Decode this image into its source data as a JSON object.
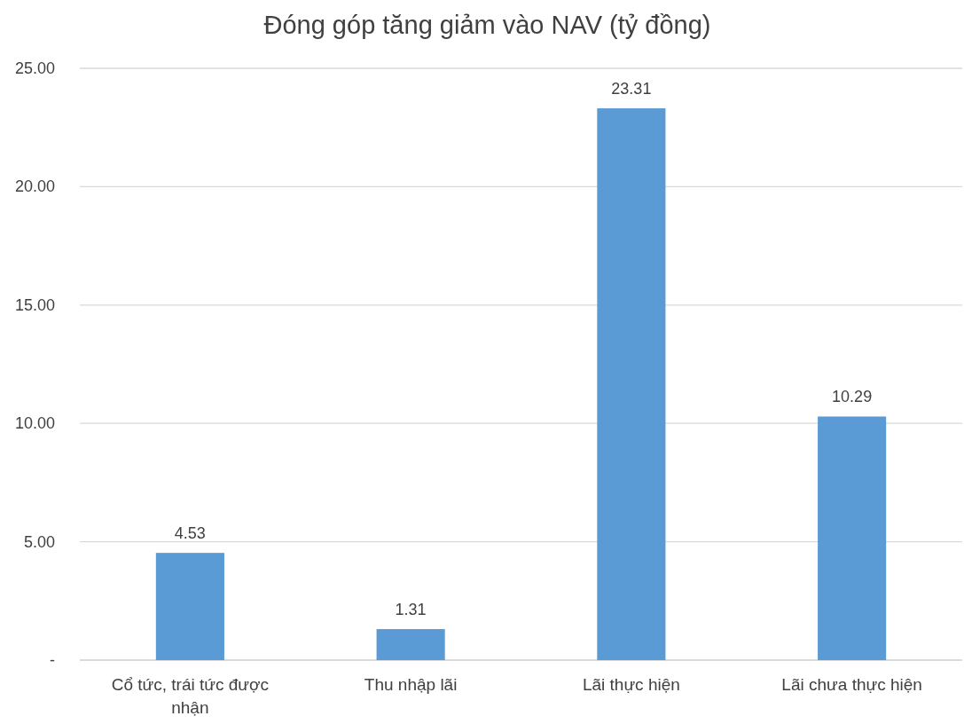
{
  "chart_data": {
    "type": "bar",
    "title": "Đóng góp tăng giảm vào NAV (tỷ đồng)",
    "categories": [
      "Cổ tức, trái tức được nhận",
      "Thu nhập lãi",
      "Lãi thực hiện",
      "Lãi chưa thực hiện"
    ],
    "values": [
      4.53,
      1.31,
      23.31,
      10.29
    ],
    "color": "#5b9bd5",
    "ylim": [
      0,
      25
    ],
    "yticks": [
      {
        "value": 0,
        "label": "-"
      },
      {
        "value": 5,
        "label": "5.00"
      },
      {
        "value": 10,
        "label": "10.00"
      },
      {
        "value": 15,
        "label": "15.00"
      },
      {
        "value": 20,
        "label": "20.00"
      },
      {
        "value": 25,
        "label": "25.00"
      }
    ],
    "grid": "y",
    "data_labels": true
  }
}
